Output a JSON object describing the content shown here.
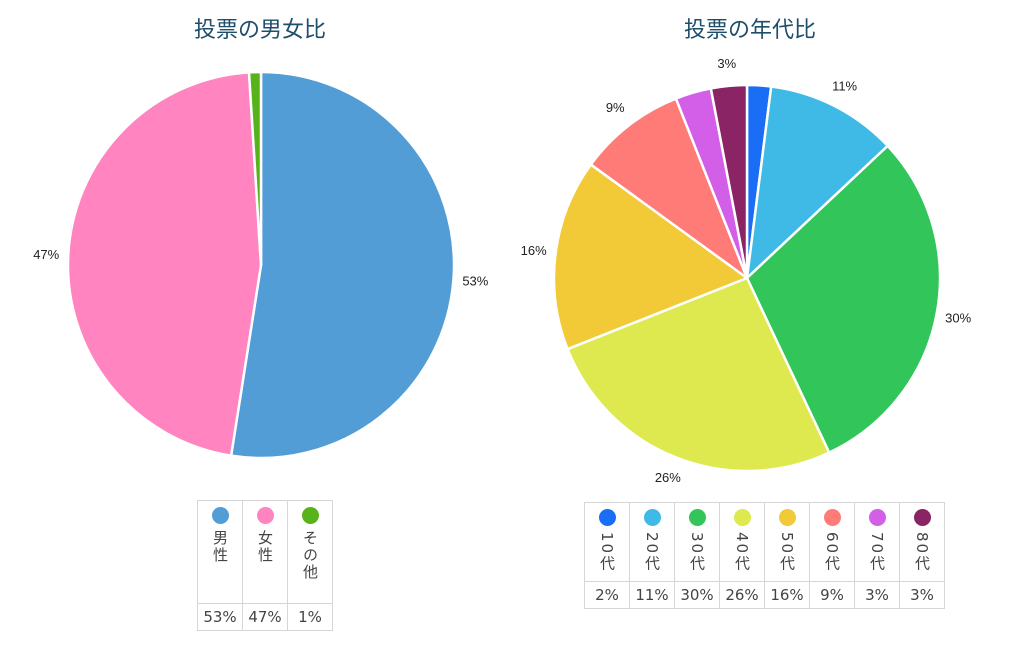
{
  "chart_data": [
    {
      "type": "pie",
      "title": "投票の男女比",
      "categories": [
        "男性",
        "女性",
        "その他"
      ],
      "values": [
        53,
        47,
        1
      ],
      "data_labels": [
        "53%",
        "47%",
        ""
      ],
      "colors": [
        "#529dd6",
        "#ff84bf",
        "#58b21a"
      ],
      "legend": {
        "placement": "bottom",
        "labels": [
          "男性",
          "女性",
          "その他"
        ],
        "values": [
          "53%",
          "47%",
          "1%"
        ]
      }
    },
    {
      "type": "pie",
      "title": "投票の年代比",
      "categories": [
        "10代",
        "20代",
        "30代",
        "40代",
        "50代",
        "60代",
        "70代",
        "80代"
      ],
      "values": [
        2,
        11,
        30,
        26,
        16,
        9,
        3,
        3
      ],
      "data_labels": [
        "",
        "11%",
        "30%",
        "26%",
        "16%",
        "9%",
        "",
        "3%"
      ],
      "colors": [
        "#1a6ef5",
        "#3fbae6",
        "#31c55a",
        "#dde94e",
        "#f2c936",
        "#ff7b78",
        "#d35ee8",
        "#8b2464"
      ],
      "legend": {
        "placement": "bottom",
        "labels": [
          "10代",
          "20代",
          "30代",
          "40代",
          "50代",
          "60代",
          "70代",
          "80代"
        ],
        "values": [
          "2%",
          "11%",
          "30%",
          "26%",
          "16%",
          "9%",
          "3%",
          "3%"
        ]
      }
    }
  ]
}
